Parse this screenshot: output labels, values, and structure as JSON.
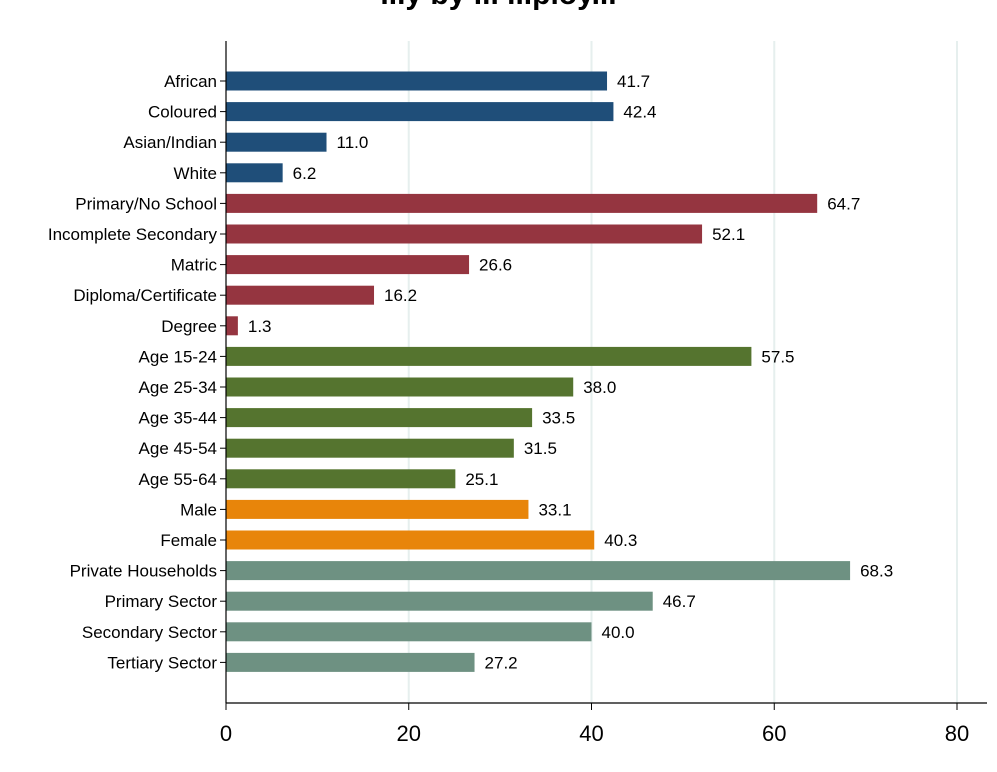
{
  "chart_data": {
    "type": "bar",
    "orientation": "horizontal",
    "title": "...y by ... ...ploy...",
    "xlabel": "",
    "ylabel": "",
    "xlim": [
      0,
      80
    ],
    "x_ticks": [
      "0",
      "20",
      "40",
      "60",
      "80"
    ],
    "grid": "vertical",
    "categories": [
      "African",
      "Coloured",
      "Asian/Indian",
      "White",
      "Primary/No School",
      "Incomplete Secondary",
      "Matric",
      "Diploma/Certificate",
      "Degree",
      "Age 15-24",
      "Age 25-34",
      "Age 35-44",
      "Age 45-54",
      "Age 55-64",
      "Male",
      "Female",
      "Private Households",
      "Primary Sector",
      "Secondary Sector",
      "Tertiary Sector"
    ],
    "values": [
      41.7,
      42.4,
      11.0,
      6.2,
      64.7,
      52.1,
      26.6,
      16.2,
      1.3,
      57.5,
      38.0,
      33.5,
      31.5,
      25.1,
      33.1,
      40.3,
      68.3,
      46.7,
      40.0,
      27.2
    ],
    "value_labels": [
      "41.7",
      "42.4",
      "11.0",
      "6.2",
      "64.7",
      "52.1",
      "26.6",
      "16.2",
      "1.3",
      "57.5",
      "38.0",
      "33.5",
      "31.5",
      "25.1",
      "33.1",
      "40.3",
      "68.3",
      "46.7",
      "40.0",
      "27.2"
    ],
    "groups": [
      0,
      0,
      0,
      0,
      1,
      1,
      1,
      1,
      1,
      2,
      2,
      2,
      2,
      2,
      3,
      3,
      4,
      4,
      4,
      4
    ],
    "group_colors": [
      "#1f4e79",
      "#953540",
      "#55742f",
      "#e8850a",
      "#6e9182"
    ],
    "grid_color": "#e6efee"
  }
}
